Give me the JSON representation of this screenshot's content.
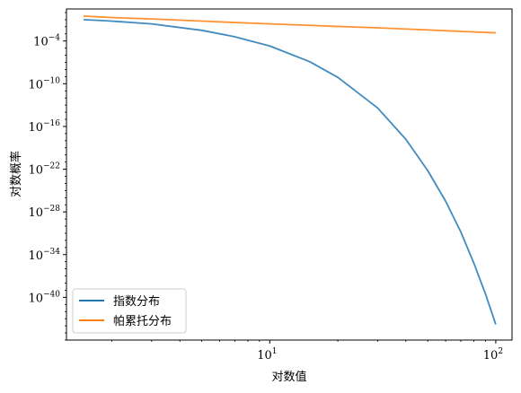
{
  "chart_data": {
    "type": "line",
    "xlabel": "对数值",
    "ylabel": "对数概率",
    "xscale": "log",
    "yscale": "log",
    "xlim": [
      1.26,
      118
    ],
    "ylim_exponent": [
      -46,
      0.5
    ],
    "x_ticks": [
      {
        "value": 10,
        "base": "10",
        "exp": "1"
      },
      {
        "value": 100,
        "base": "10",
        "exp": "2"
      }
    ],
    "y_ticks": [
      {
        "exp_value": -4,
        "base": "10",
        "exp": "−4"
      },
      {
        "exp_value": -10,
        "base": "10",
        "exp": "−10"
      },
      {
        "exp_value": -16,
        "base": "10",
        "exp": "−16"
      },
      {
        "exp_value": -22,
        "base": "10",
        "exp": "−22"
      },
      {
        "exp_value": -28,
        "base": "10",
        "exp": "−28"
      },
      {
        "exp_value": -34,
        "base": "10",
        "exp": "−34"
      },
      {
        "exp_value": -40,
        "base": "10",
        "exp": "−40"
      }
    ],
    "grid": false,
    "legend_position": "lower-left",
    "series": [
      {
        "name": "指数分布",
        "color": "#1f77b4",
        "x": [
          1.5,
          2,
          3,
          5,
          7,
          10,
          15,
          20,
          30,
          40,
          50,
          60,
          70,
          80,
          90,
          100
        ],
        "y_log10": [
          -1.0,
          -1.2,
          -1.6,
          -2.5,
          -3.4,
          -4.7,
          -6.9,
          -9.1,
          -13.4,
          -17.8,
          -22.2,
          -26.5,
          -30.8,
          -35.2,
          -39.5,
          -43.8
        ]
      },
      {
        "name": "帕累托分布",
        "color": "#ff7f0e",
        "x": [
          1.5,
          2,
          3,
          5,
          7,
          10,
          15,
          20,
          30,
          50,
          70,
          100
        ],
        "y_log10": [
          -0.5,
          -0.7,
          -0.9,
          -1.2,
          -1.4,
          -1.6,
          -1.8,
          -1.95,
          -2.15,
          -2.45,
          -2.65,
          -2.85
        ]
      }
    ]
  }
}
